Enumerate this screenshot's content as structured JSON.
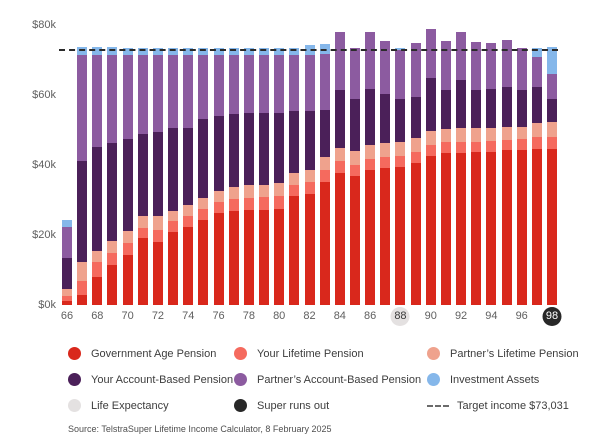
{
  "colors": {
    "gov": "#d9281c",
    "your_lifetime": "#f56a5e",
    "partner_lifetime": "#efa28d",
    "your_abp": "#4b2059",
    "partner_abp": "#8c5ba0",
    "investment": "#85b7ea",
    "life_expectancy": "#e4e1e1",
    "super_runs_out": "#282828",
    "target_line": "#2b2b2b"
  },
  "chart_data": {
    "type": "bar",
    "stacked": true,
    "title": "",
    "xlabel": "",
    "ylabel": "",
    "unit": "thousands of dollars per year",
    "ylim": [
      0,
      80
    ],
    "yticks": [
      "$0k",
      "$20k",
      "$40k",
      "$60k",
      "$80k"
    ],
    "ytick_values": [
      0,
      20,
      40,
      60,
      80
    ],
    "ages": [
      66,
      67,
      68,
      69,
      70,
      71,
      72,
      73,
      74,
      75,
      76,
      77,
      78,
      79,
      80,
      81,
      82,
      83,
      84,
      85,
      86,
      87,
      88,
      89,
      90,
      91,
      92,
      93,
      94,
      95,
      96,
      97,
      98
    ],
    "xtick_every": 2,
    "series": [
      {
        "key": "gov",
        "name": "Government Age Pension",
        "values": [
          1.2,
          2.8,
          8.1,
          11.4,
          14.3,
          19.1,
          18.1,
          21.0,
          22.4,
          24.4,
          26.3,
          27.0,
          27.2,
          27.2,
          27.5,
          31.1,
          31.7,
          35.2,
          37.8,
          36.8,
          38.5,
          39.2,
          39.4,
          40.7,
          42.6,
          43.5,
          43.3,
          43.7,
          43.8,
          44.2,
          44.3,
          44.5,
          44.5
        ]
      },
      {
        "key": "your_lifetime",
        "name": "Your Lifetime Pension",
        "values": [
          1.4,
          4.1,
          4.3,
          3.6,
          3.4,
          3.0,
          3.4,
          3.0,
          3.0,
          3.0,
          3.2,
          3.4,
          3.5,
          3.6,
          3.6,
          3.3,
          3.4,
          3.5,
          3.3,
          3.2,
          3.3,
          3.2,
          3.2,
          3.0,
          3.2,
          3.0,
          3.3,
          3.0,
          3.0,
          3.0,
          3.0,
          3.4,
          3.4
        ]
      },
      {
        "key": "partner_lifetime",
        "name": "Partner’s Lifetime Pension",
        "values": [
          1.9,
          5.5,
          2.9,
          3.4,
          3.5,
          3.2,
          3.8,
          3.0,
          3.3,
          3.1,
          3.1,
          3.4,
          3.5,
          3.6,
          3.7,
          3.4,
          3.5,
          3.6,
          3.9,
          4.0,
          4.0,
          3.9,
          3.9,
          4.0,
          4.0,
          3.8,
          4.0,
          3.8,
          3.8,
          3.8,
          3.7,
          4.0,
          4.3
        ]
      },
      {
        "key": "your_abp",
        "name": "Your Account-Based Pension",
        "values": [
          9.0,
          28.8,
          29.8,
          28.0,
          26.2,
          23.5,
          24.0,
          23.7,
          22.0,
          22.6,
          21.5,
          20.8,
          20.7,
          20.4,
          20.2,
          17.5,
          16.9,
          13.4,
          16.3,
          15.0,
          16.0,
          14.0,
          12.5,
          11.8,
          15.1,
          11.0,
          13.6,
          10.8,
          11.0,
          11.3,
          10.5,
          10.4,
          6.7
        ]
      },
      {
        "key": "partner_abp",
        "name": "Partner’s Account-Based Pension",
        "values": [
          8.9,
          30.2,
          26.2,
          25.0,
          24.0,
          22.6,
          22.1,
          20.7,
          20.7,
          18.3,
          17.3,
          16.8,
          16.5,
          16.6,
          16.4,
          16.1,
          15.9,
          16.0,
          16.8,
          14.3,
          16.2,
          15.0,
          13.8,
          15.5,
          14.1,
          14.1,
          13.8,
          13.9,
          13.4,
          13.3,
          12.0,
          8.7,
          7.1
        ]
      },
      {
        "key": "investment",
        "name": "Investment Assets",
        "values": [
          2.0,
          2.4,
          2.5,
          2.2,
          2.0,
          2.0,
          2.0,
          2.0,
          2.0,
          2.0,
          2.0,
          2.0,
          2.0,
          2.0,
          2.0,
          2.1,
          2.8,
          2.8,
          0,
          0,
          0,
          0,
          0.5,
          0,
          0,
          0,
          0,
          0,
          0,
          0,
          0,
          2.4,
          7.7
        ]
      }
    ],
    "target_line": {
      "value": 73.031,
      "label": "Target income $73,031"
    },
    "highlights": {
      "life_expectancy_age": 88,
      "super_runs_out_age": 98
    },
    "grid": false,
    "legend_position": "bottom"
  },
  "legend": {
    "items": [
      {
        "label": "Government Age Pension",
        "color_key": "gov",
        "kind": "circle"
      },
      {
        "label": "Your Lifetime Pension",
        "color_key": "your_lifetime",
        "kind": "circle"
      },
      {
        "label": "Partner’s Lifetime Pension",
        "color_key": "partner_lifetime",
        "kind": "circle"
      },
      {
        "label": "Your Account-Based Pension",
        "color_key": "your_abp",
        "kind": "circle"
      },
      {
        "label": "Partner’s Account-Based Pension",
        "color_key": "partner_abp",
        "kind": "circle"
      },
      {
        "label": "Investment Assets",
        "color_key": "investment",
        "kind": "circle"
      },
      {
        "label": "Life Expectancy",
        "color_key": "life_expectancy",
        "kind": "circle"
      },
      {
        "label": "Super runs out",
        "color_key": "super_runs_out",
        "kind": "circle"
      },
      {
        "label": "Target income $73,031",
        "color_key": "target_line",
        "kind": "dash"
      }
    ]
  },
  "source": {
    "text": "Source: TelstraSuper Lifetime Income Calculator, 8 February 2025"
  }
}
